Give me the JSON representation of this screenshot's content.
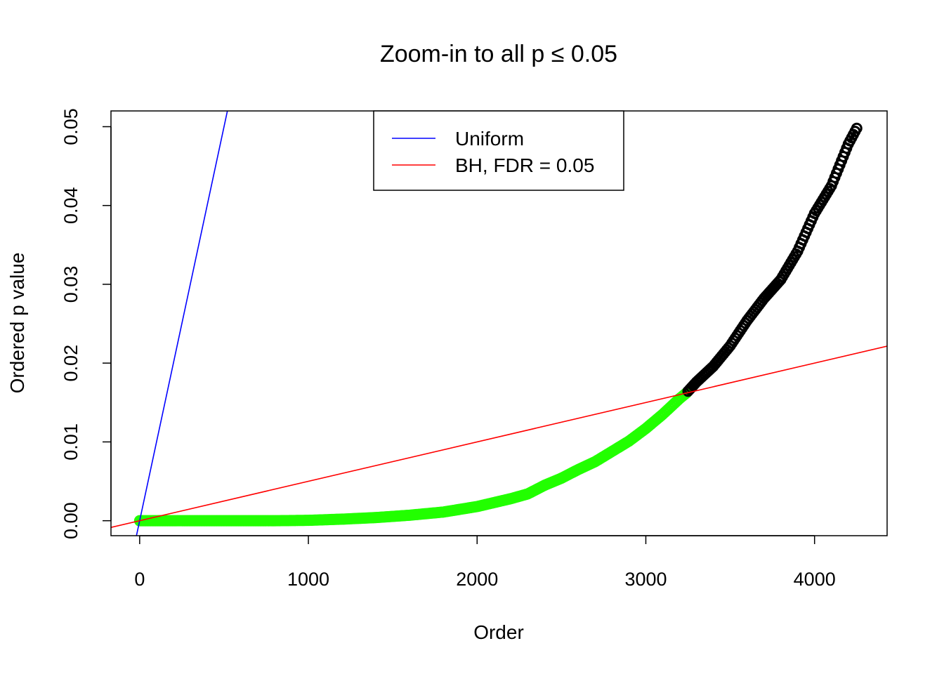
{
  "chart_data": {
    "type": "scatter",
    "title": "Zoom-in to all p ≤ 0.05",
    "xlabel": "Order",
    "ylabel": "Ordered p value",
    "xlim": [
      -170,
      4430
    ],
    "ylim": [
      -0.0019,
      0.052
    ],
    "x_ticks": [
      0,
      1000,
      2000,
      3000,
      4000
    ],
    "x_tick_labels": [
      "0",
      "1000",
      "2000",
      "3000",
      "4000"
    ],
    "y_ticks": [
      0,
      0.01,
      0.02,
      0.03,
      0.04,
      0.05
    ],
    "y_tick_labels": [
      "0.00",
      "0.01",
      "0.02",
      "0.03",
      "0.04",
      "0.05"
    ],
    "grid": false,
    "legend": {
      "position": "top-center",
      "entries": [
        {
          "label": "Uniform",
          "color": "#0000ff"
        },
        {
          "label": "BH, FDR = 0.05",
          "color": "#ff0000"
        }
      ]
    },
    "reference_lines": [
      {
        "name": "Uniform",
        "color": "#0000ff",
        "slope": 0.0001,
        "intercept": 0
      },
      {
        "name": "BH, FDR = 0.05",
        "color": "#ff0000",
        "slope": 5e-06,
        "intercept": 0
      }
    ],
    "points": {
      "significant_color": "#22ff00",
      "other_color": "#000000",
      "cutoff_rank": 3240,
      "max_rank": 4250,
      "curve": [
        [
          0,
          0.0
        ],
        [
          200,
          0.0
        ],
        [
          500,
          0.0
        ],
        [
          800,
          0.0
        ],
        [
          1000,
          5e-05
        ],
        [
          1200,
          0.0002
        ],
        [
          1400,
          0.0004
        ],
        [
          1600,
          0.0007
        ],
        [
          1800,
          0.0011
        ],
        [
          2000,
          0.0018
        ],
        [
          2200,
          0.0028
        ],
        [
          2300,
          0.0034
        ],
        [
          2400,
          0.0045
        ],
        [
          2500,
          0.0054
        ],
        [
          2600,
          0.0065
        ],
        [
          2700,
          0.0075
        ],
        [
          2800,
          0.0088
        ],
        [
          2900,
          0.0101
        ],
        [
          3000,
          0.0117
        ],
        [
          3100,
          0.0135
        ],
        [
          3200,
          0.0155
        ],
        [
          3240,
          0.0162
        ],
        [
          3300,
          0.0176
        ],
        [
          3400,
          0.0196
        ],
        [
          3500,
          0.0222
        ],
        [
          3600,
          0.0254
        ],
        [
          3700,
          0.0282
        ],
        [
          3800,
          0.0306
        ],
        [
          3900,
          0.0342
        ],
        [
          4000,
          0.039
        ],
        [
          4100,
          0.0425
        ],
        [
          4200,
          0.0478
        ],
        [
          4250,
          0.0498
        ]
      ]
    }
  }
}
